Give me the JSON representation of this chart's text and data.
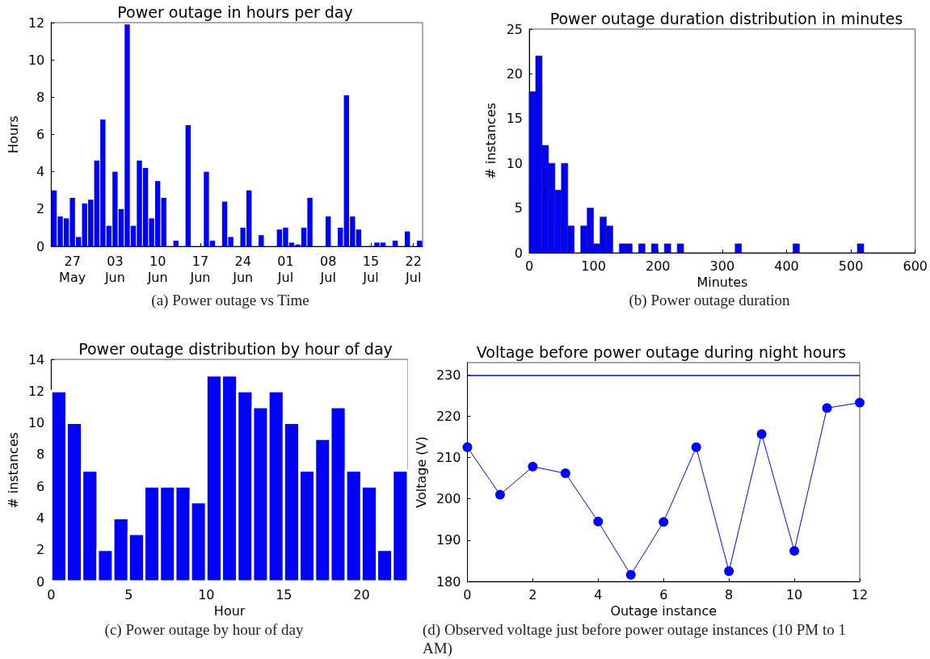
{
  "chart_data": [
    {
      "type": "bar",
      "title": "Power outage in hours per day",
      "ylabel": "Hours",
      "annotations": [
        "(a) Power outage vs Time"
      ],
      "categories": [
        null,
        null,
        null,
        "27\nMay",
        null,
        null,
        null,
        null,
        null,
        null,
        "03\nJun",
        null,
        null,
        null,
        null,
        null,
        null,
        "10\nJun",
        null,
        null,
        null,
        null,
        null,
        null,
        "17\nJun",
        null,
        null,
        null,
        null,
        null,
        null,
        "24\nJun",
        null,
        null,
        null,
        null,
        null,
        null,
        "01\nJul",
        null,
        null,
        null,
        null,
        null,
        null,
        "08\nJul",
        null,
        null,
        null,
        null,
        null,
        null,
        "15\nJul",
        null,
        null,
        null,
        null,
        null,
        null,
        "22\nJul",
        null
      ],
      "values": [
        3.0,
        1.6,
        1.5,
        2.6,
        0.5,
        2.3,
        2.5,
        4.6,
        6.8,
        1.1,
        4.0,
        2.0,
        11.9,
        1.1,
        4.6,
        4.2,
        1.5,
        3.5,
        2.6,
        0,
        0.3,
        0,
        6.5,
        0,
        0,
        4.0,
        0.3,
        0,
        2.4,
        0.5,
        0,
        1.0,
        3.0,
        0,
        0.6,
        0,
        0,
        0.9,
        1.0,
        0.2,
        0.1,
        1.0,
        2.6,
        0,
        0,
        1.6,
        0,
        1.0,
        8.1,
        1.6,
        0.9,
        0,
        0,
        0.2,
        0.2,
        0,
        0.3,
        0,
        0.8,
        0,
        0.3
      ],
      "color": "#0000ff",
      "ylim": [
        0,
        12
      ],
      "yticks": [
        0,
        2,
        4,
        6,
        8,
        10,
        12
      ]
    },
    {
      "type": "histogram",
      "title": "Power outage duration distribution in minutes",
      "xlabel": "Minutes",
      "ylabel": "# instances",
      "annotations": [
        "(b) Power outage duration"
      ],
      "bins": [
        0,
        10,
        20,
        30,
        40,
        50,
        60,
        70,
        80,
        90,
        100,
        110,
        120,
        130,
        140,
        150,
        160,
        170,
        180,
        190,
        200,
        210,
        220,
        230,
        240,
        250,
        260,
        270,
        280,
        290,
        300,
        310,
        320,
        330,
        340,
        350,
        360,
        370,
        380,
        390,
        400,
        410,
        420,
        430,
        440,
        450,
        460,
        470,
        480,
        490,
        500,
        510,
        520
      ],
      "values": [
        18,
        22,
        12,
        10,
        7,
        10,
        3,
        0,
        3,
        5,
        1,
        4,
        3,
        0,
        1,
        1,
        0,
        1,
        0,
        1,
        0,
        1,
        0,
        1,
        0,
        0,
        0,
        0,
        0,
        0,
        0,
        0,
        1,
        0,
        0,
        0,
        0,
        0,
        0,
        0,
        0,
        1,
        0,
        0,
        0,
        0,
        0,
        0,
        0,
        0,
        0,
        1
      ],
      "color": "#0000ff",
      "xlim": [
        0,
        600
      ],
      "xticks": [
        0,
        100,
        200,
        300,
        400,
        500,
        600
      ],
      "ylim": [
        0,
        25
      ],
      "yticks": [
        0,
        5,
        10,
        15,
        20,
        25
      ]
    },
    {
      "type": "histogram",
      "title": "Power outage distribution by hour of day",
      "xlabel": "Hour",
      "ylabel": "# instances",
      "annotations": [
        "(c) Power outage by hour of day"
      ],
      "bins": [
        0,
        1,
        2,
        3,
        4,
        5,
        6,
        7,
        8,
        9,
        10,
        11,
        12,
        13,
        14,
        15,
        16,
        17,
        18,
        19,
        20,
        21,
        22,
        23
      ],
      "values": [
        12,
        10,
        7,
        2,
        4,
        3,
        6,
        6,
        6,
        5,
        13,
        13,
        12,
        11,
        12,
        10,
        7,
        9,
        11,
        7,
        6,
        2,
        7
      ],
      "color": "#0000ff",
      "xlim": [
        0,
        23
      ],
      "xticks": [
        0,
        5,
        10,
        15,
        20
      ],
      "ylim": [
        0,
        14
      ],
      "yticks": [
        0,
        2,
        4,
        6,
        8,
        10,
        12,
        14
      ]
    },
    {
      "type": "line",
      "title": "Voltage before power outage during night hours",
      "xlabel": "Outage instance",
      "ylabel": "Voltage (V)",
      "annotations": [
        "(d) Observed voltage just before power outage instances (10 PM to 1 AM)"
      ],
      "x": [
        0,
        1,
        2,
        3,
        4,
        5,
        6,
        7,
        8,
        9,
        10,
        11,
        12
      ],
      "values": [
        212.5,
        201,
        207.8,
        206.2,
        194.5,
        181.6,
        194.4,
        212.5,
        182.5,
        215.7,
        187.4,
        222,
        223.3
      ],
      "color": "#0000ff",
      "marker": "circle",
      "xlim": [
        0,
        12
      ],
      "xticks": [
        0,
        2,
        4,
        6,
        8,
        10,
        12
      ],
      "ylim": [
        180,
        233
      ],
      "yticks": [
        180,
        190,
        200,
        210,
        220,
        230
      ],
      "ref_lines": [
        {
          "axis": "y",
          "value": 230,
          "color": "#0000ff"
        }
      ]
    }
  ]
}
